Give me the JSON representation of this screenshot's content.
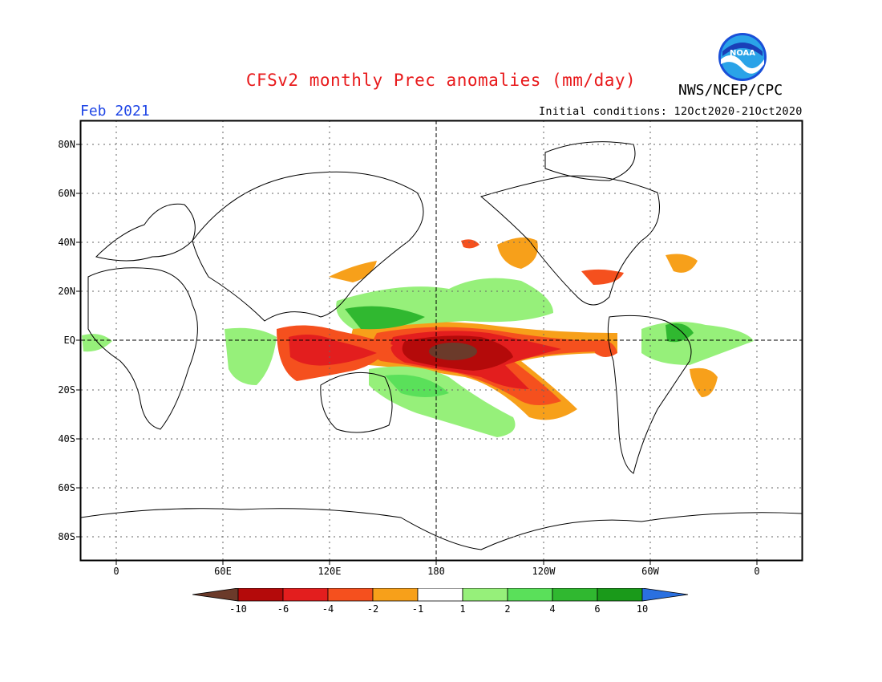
{
  "header": {
    "title": "CFSv2 monthly Prec anomalies (mm/day)",
    "month": "Feb 2021",
    "agency": "NWS/NCEP/CPC",
    "initial_conditions": "Initial conditions: 12Oct2020-21Oct2020",
    "logo_text": "NOAA"
  },
  "axes": {
    "lat_labels": [
      "80N",
      "60N",
      "40N",
      "20N",
      "EQ",
      "20S",
      "40S",
      "60S",
      "80S"
    ],
    "lon_labels": [
      "0",
      "60E",
      "120E",
      "180",
      "120W",
      "60W",
      "0"
    ]
  },
  "colorbar": {
    "labels": [
      "-10",
      "-6",
      "-4",
      "-2",
      "-1",
      "1",
      "2",
      "4",
      "6",
      "10"
    ],
    "colors": {
      "lt_m10": "#6b3a2a",
      "m10_m6": "#b40a0a",
      "m6_m4": "#e31e1e",
      "m4_m2": "#f5501e",
      "m2_m1": "#f7a01a",
      "m1_p1": "#ffffff",
      "p1_p2": "#96f07a",
      "p2_p4": "#5ae05a",
      "p4_p6": "#30b830",
      "p6_p10": "#1a9a1a",
      "gt_p10": "#2a70e0"
    }
  }
}
